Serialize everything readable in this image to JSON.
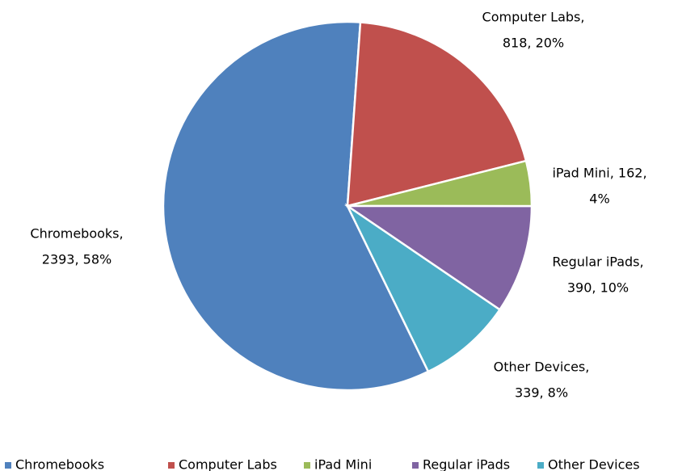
{
  "chart_data": {
    "type": "pie",
    "categories": [
      "Chromebooks",
      "Computer Labs",
      "iPad Mini",
      "Regular iPads",
      "Other Devices"
    ],
    "values": [
      2393,
      818,
      162,
      390,
      339
    ],
    "value_labels": [
      [
        "Chromebooks,",
        "2393, 58%"
      ],
      [
        "Computer Labs,",
        "818, 20%"
      ],
      [
        "iPad Mini, 162,",
        "4%"
      ],
      [
        "Regular iPads,",
        "390, 10%"
      ],
      [
        "Other Devices,",
        "339, 8%"
      ]
    ],
    "colors": [
      "#4f81bd",
      "#c0504d",
      "#9bbb59",
      "#8064a2",
      "#4bacc6"
    ],
    "legend": "bottom"
  }
}
